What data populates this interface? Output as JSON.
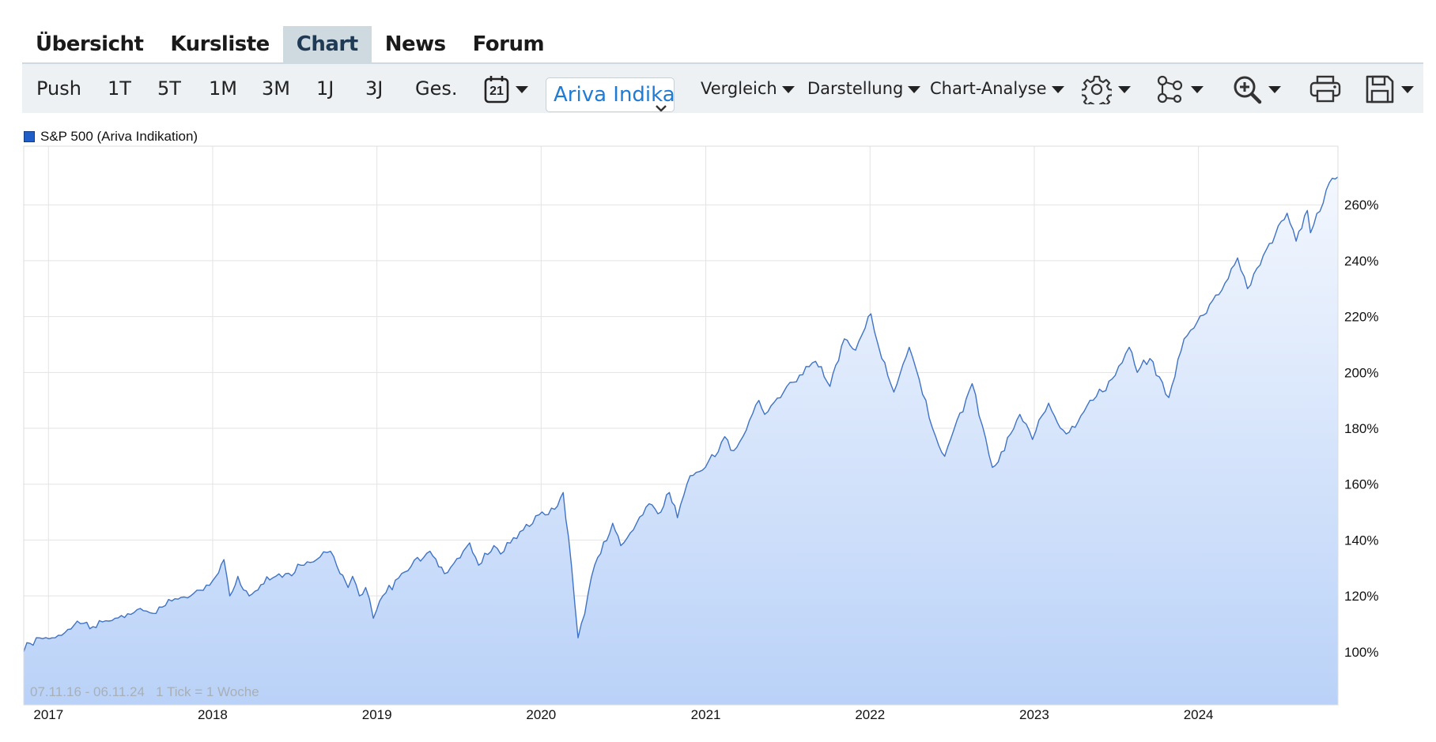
{
  "tabs": [
    {
      "label": "Übersicht",
      "active": false
    },
    {
      "label": "Kursliste",
      "active": false
    },
    {
      "label": "Chart",
      "active": true
    },
    {
      "label": "News",
      "active": false
    },
    {
      "label": "Forum",
      "active": false
    }
  ],
  "toolbar": {
    "ranges": [
      "Push",
      "1T",
      "5T",
      "1M",
      "3M",
      "1J",
      "3J",
      "Ges."
    ],
    "calendar_day": "21",
    "source_select": "Ariva Indikation",
    "menus": [
      "Vergleich",
      "Darstellung",
      "Chart-Analyse"
    ],
    "icons": [
      "settings-icon",
      "indicators-icon",
      "zoom-icon",
      "print-icon",
      "save-icon"
    ]
  },
  "footer": {
    "date_range": "07.11.16 - 06.11.24",
    "tick_info": "1 Tick = 1 Woche"
  },
  "colors": {
    "line": "#3f73c7",
    "fill_top": "#f3f7fe",
    "fill_bottom": "#bad2f8",
    "legend": "#1f5ec9",
    "grid": "#e3e3e3"
  },
  "chart_data": {
    "type": "area",
    "legend": [
      "S&P 500 (Ariva Indikation)"
    ],
    "x_ticks": [
      "2017",
      "2018",
      "2019",
      "2020",
      "2021",
      "2022",
      "2023",
      "2024"
    ],
    "y_ticks": [
      "100%",
      "120%",
      "140%",
      "160%",
      "180%",
      "200%",
      "220%",
      "240%",
      "260%"
    ],
    "xlim": [
      "2016-11-07",
      "2024-11-06"
    ],
    "ylim": [
      81,
      281
    ],
    "grid": true,
    "series": [
      {
        "name": "S&P 500 (Ariva Indikation)",
        "points": [
          [
            "2016-11-07",
            100
          ],
          [
            "2016-11-21",
            103
          ],
          [
            "2016-12-12",
            105
          ],
          [
            "2017-01-09",
            105
          ],
          [
            "2017-02-13",
            108
          ],
          [
            "2017-03-06",
            111
          ],
          [
            "2017-04-10",
            109
          ],
          [
            "2017-05-15",
            111
          ],
          [
            "2017-06-12",
            113
          ],
          [
            "2017-07-10",
            114
          ],
          [
            "2017-08-14",
            114
          ],
          [
            "2017-09-11",
            116
          ],
          [
            "2017-10-09",
            119
          ],
          [
            "2017-11-13",
            120
          ],
          [
            "2017-12-11",
            122
          ],
          [
            "2018-01-08",
            127
          ],
          [
            "2018-01-26",
            133
          ],
          [
            "2018-02-08",
            120
          ],
          [
            "2018-02-26",
            127
          ],
          [
            "2018-03-23",
            120
          ],
          [
            "2018-04-18",
            124
          ],
          [
            "2018-05-21",
            127
          ],
          [
            "2018-06-12",
            128
          ],
          [
            "2018-07-16",
            131
          ],
          [
            "2018-08-20",
            133
          ],
          [
            "2018-09-20",
            136
          ],
          [
            "2018-10-11",
            128
          ],
          [
            "2018-10-29",
            123
          ],
          [
            "2018-11-08",
            127
          ],
          [
            "2018-11-23",
            120
          ],
          [
            "2018-12-07",
            123
          ],
          [
            "2018-12-24",
            112
          ],
          [
            "2019-01-14",
            120
          ],
          [
            "2019-02-25",
            128
          ],
          [
            "2019-04-29",
            136
          ],
          [
            "2019-05-31",
            128
          ],
          [
            "2019-07-26",
            139
          ],
          [
            "2019-08-15",
            131
          ],
          [
            "2019-09-18",
            138
          ],
          [
            "2019-10-03",
            135
          ],
          [
            "2019-11-15",
            143
          ],
          [
            "2019-12-27",
            149
          ],
          [
            "2020-01-31",
            151
          ],
          [
            "2020-02-19",
            157
          ],
          [
            "2020-03-02",
            141
          ],
          [
            "2020-03-23",
            105
          ],
          [
            "2020-04-29",
            131
          ],
          [
            "2020-06-08",
            146
          ],
          [
            "2020-06-26",
            138
          ],
          [
            "2020-08-28",
            153
          ],
          [
            "2020-09-23",
            150
          ],
          [
            "2020-10-12",
            157
          ],
          [
            "2020-10-30",
            148
          ],
          [
            "2020-11-27",
            163
          ],
          [
            "2020-12-31",
            166
          ],
          [
            "2021-02-12",
            177
          ],
          [
            "2021-03-04",
            172
          ],
          [
            "2021-04-29",
            190
          ],
          [
            "2021-05-12",
            185
          ],
          [
            "2021-06-30",
            195
          ],
          [
            "2021-09-02",
            204
          ],
          [
            "2021-10-04",
            195
          ],
          [
            "2021-11-05",
            212
          ],
          [
            "2021-11-30",
            208
          ],
          [
            "2021-12-28",
            220
          ],
          [
            "2022-01-03",
            221
          ],
          [
            "2022-01-27",
            205
          ],
          [
            "2022-02-23",
            193
          ],
          [
            "2022-03-29",
            209
          ],
          [
            "2022-05-20",
            180
          ],
          [
            "2022-06-16",
            170
          ],
          [
            "2022-08-16",
            196
          ],
          [
            "2022-09-30",
            166
          ],
          [
            "2022-10-13",
            168
          ],
          [
            "2022-11-30",
            185
          ],
          [
            "2022-12-28",
            176
          ],
          [
            "2023-02-02",
            189
          ],
          [
            "2023-03-13",
            178
          ],
          [
            "2023-04-28",
            188
          ],
          [
            "2023-06-30",
            199
          ],
          [
            "2023-07-31",
            209
          ],
          [
            "2023-08-18",
            200
          ],
          [
            "2023-09-15",
            205
          ],
          [
            "2023-10-27",
            191
          ],
          [
            "2023-11-30",
            212
          ],
          [
            "2023-12-29",
            218
          ],
          [
            "2024-02-29",
            232
          ],
          [
            "2024-03-28",
            241
          ],
          [
            "2024-04-19",
            230
          ],
          [
            "2024-05-31",
            244
          ],
          [
            "2024-07-16",
            257
          ],
          [
            "2024-08-05",
            247
          ],
          [
            "2024-08-30",
            258
          ],
          [
            "2024-09-06",
            250
          ],
          [
            "2024-10-18",
            268
          ],
          [
            "2024-11-06",
            270
          ]
        ]
      }
    ]
  }
}
